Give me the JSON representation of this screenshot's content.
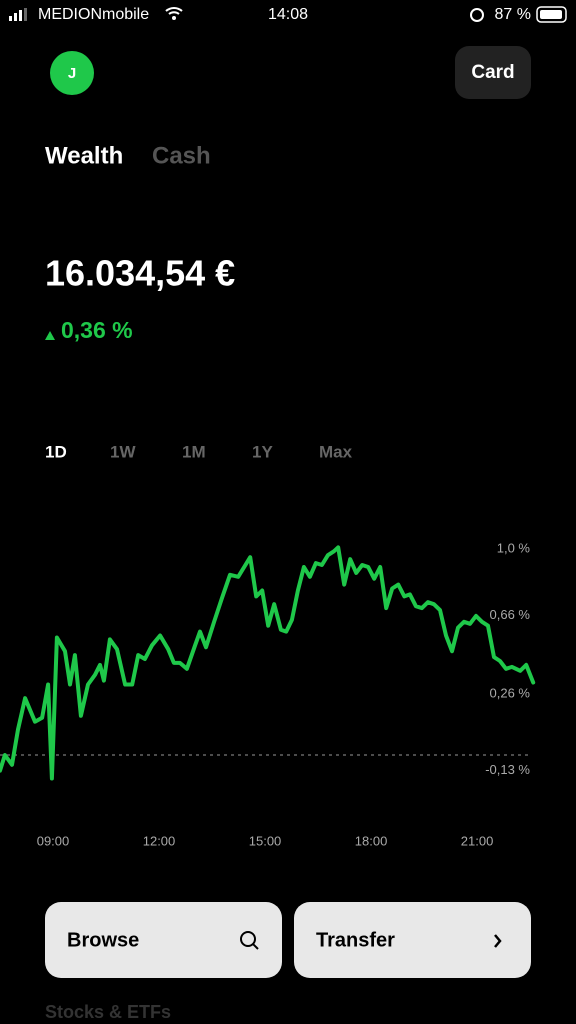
{
  "status_bar": {
    "carrier": "MEDIONmobile",
    "time": "14:08",
    "battery": "87 %"
  },
  "header": {
    "avatar": "J",
    "card_button": "Card"
  },
  "tabs": [
    "Wealth",
    "Cash"
  ],
  "balance": "16.034,54 €",
  "change": "0,36 %",
  "ranges": [
    "1D",
    "1W",
    "1M",
    "1Y",
    "Max"
  ],
  "chart_data": {
    "type": "line",
    "color": "#1fc84a",
    "x": [
      7.5,
      7.64,
      7.84,
      8.01,
      8.21,
      8.49,
      8.69,
      8.86,
      8.97,
      9.11,
      9.34,
      9.48,
      9.62,
      9.79,
      9.99,
      10.19,
      10.33,
      10.44,
      10.61,
      10.81,
      11.04,
      11.24,
      11.41,
      11.6,
      11.8,
      12.03,
      12.26,
      12.42,
      12.59,
      12.79,
      13.02,
      13.16,
      13.33,
      13.56,
      13.78,
      14.01,
      14.24,
      14.41,
      14.58,
      14.75,
      14.92,
      15.09,
      15.26,
      15.45,
      15.6,
      15.76,
      15.93,
      16.1,
      16.27,
      16.44,
      16.61,
      16.78,
      16.95,
      17.07,
      17.24,
      17.41,
      17.58,
      17.75,
      17.92,
      18.09,
      18.26,
      18.43,
      18.6,
      18.77,
      18.94,
      19.1,
      19.27,
      19.44,
      19.61,
      19.78,
      19.95,
      20.12,
      20.29,
      20.46,
      20.63,
      20.8,
      20.97,
      21.14,
      21.31,
      21.48,
      21.65,
      21.82,
      21.99,
      22.22,
      22.39,
      22.59
    ],
    "values": [
      -0.08,
      0.0,
      -0.05,
      0.13,
      0.29,
      0.17,
      0.19,
      0.36,
      -0.12,
      0.6,
      0.53,
      0.36,
      0.51,
      0.2,
      0.36,
      0.41,
      0.46,
      0.38,
      0.59,
      0.54,
      0.36,
      0.36,
      0.51,
      0.49,
      0.56,
      0.61,
      0.54,
      0.47,
      0.47,
      0.44,
      0.56,
      0.63,
      0.55,
      0.68,
      0.8,
      0.92,
      0.91,
      0.96,
      1.01,
      0.81,
      0.84,
      0.66,
      0.77,
      0.64,
      0.63,
      0.69,
      0.84,
      0.96,
      0.91,
      0.98,
      0.97,
      1.02,
      1.04,
      1.06,
      0.87,
      1.0,
      0.93,
      0.97,
      0.96,
      0.9,
      0.96,
      0.75,
      0.85,
      0.87,
      0.81,
      0.82,
      0.76,
      0.75,
      0.78,
      0.77,
      0.74,
      0.61,
      0.53,
      0.65,
      0.68,
      0.67,
      0.71,
      0.68,
      0.66,
      0.5,
      0.48,
      0.44,
      0.45,
      0.43,
      0.46,
      0.37
    ],
    "xlim": [
      7.5,
      23.8
    ],
    "xticks": [
      {
        "value": 9,
        "label": "09:00"
      },
      {
        "value": 12,
        "label": "12:00"
      },
      {
        "value": 15,
        "label": "15:00"
      },
      {
        "value": 18,
        "label": "18:00"
      },
      {
        "value": 21,
        "label": "21:00"
      }
    ],
    "ylim": [
      -0.23,
      1.2
    ],
    "yticks": [
      {
        "value": 1.0,
        "label": "1,0 %"
      },
      {
        "value": 0.66,
        "label": "0,66 %"
      },
      {
        "value": 0.26,
        "label": "0,26 %"
      },
      {
        "value": -0.13,
        "label": "-0,13 %"
      }
    ],
    "reference_line": 0
  },
  "buttons": [
    "Browse",
    "Transfer"
  ],
  "section": "Stocks & ETFs"
}
